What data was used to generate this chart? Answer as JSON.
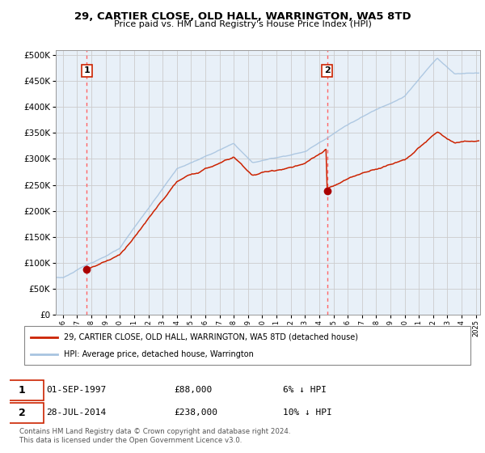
{
  "title": "29, CARTIER CLOSE, OLD HALL, WARRINGTON, WA5 8TD",
  "subtitle": "Price paid vs. HM Land Registry's House Price Index (HPI)",
  "legend_line1": "29, CARTIER CLOSE, OLD HALL, WARRINGTON, WA5 8TD (detached house)",
  "legend_line2": "HPI: Average price, detached house, Warrington",
  "sale1_date": "01-SEP-1997",
  "sale1_price": 88000,
  "sale1_label": "1",
  "sale1_pct": "6% ↓ HPI",
  "sale2_date": "28-JUL-2014",
  "sale2_price": 238000,
  "sale2_label": "2",
  "sale2_pct": "10% ↓ HPI",
  "footer": "Contains HM Land Registry data © Crown copyright and database right 2024.\nThis data is licensed under the Open Government Licence v3.0.",
  "hpi_color": "#a8c4e0",
  "price_color": "#cc2200",
  "marker_color": "#aa0000",
  "dashed_color": "#ff6666",
  "grid_color": "#cccccc",
  "bg_color": "#e8f0f8",
  "ylim_max": 500000,
  "ylim_min": 0,
  "sale1_year": 1997.67,
  "sale2_year": 2014.56,
  "xmin": 1995.5,
  "xmax": 2025.3
}
